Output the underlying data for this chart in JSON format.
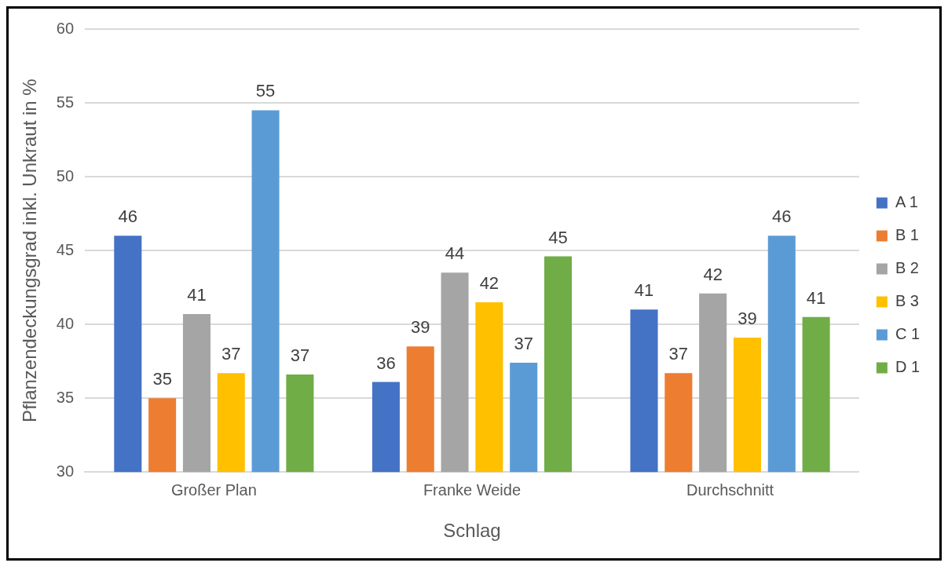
{
  "chart_data": {
    "type": "bar",
    "xlabel": "Schlag",
    "ylabel": "Pflanzendeckungsgrad inkl. Unkraut in %",
    "categories": [
      "Großer Plan",
      "Franke Weide",
      "Durchschnitt"
    ],
    "series": [
      {
        "name": "A 1",
        "color": "#4472c4",
        "values": [
          46.0,
          36.1,
          41.0
        ],
        "value_labels": [
          "46",
          "36",
          "41"
        ]
      },
      {
        "name": "B 1",
        "color": "#ed7d31",
        "values": [
          35.0,
          38.5,
          36.7
        ],
        "value_labels": [
          "35",
          "39",
          "37"
        ]
      },
      {
        "name": "B 2",
        "color": "#a5a5a5",
        "values": [
          40.7,
          43.5,
          42.1
        ],
        "value_labels": [
          "41",
          "44",
          "42"
        ]
      },
      {
        "name": "B 3",
        "color": "#ffc000",
        "values": [
          36.7,
          41.5,
          39.1
        ],
        "value_labels": [
          "37",
          "42",
          "39"
        ]
      },
      {
        "name": "C 1",
        "color": "#5b9bd5",
        "values": [
          54.5,
          37.4,
          46.0
        ],
        "value_labels": [
          "55",
          "37",
          "46"
        ]
      },
      {
        "name": "D 1",
        "color": "#70ad47",
        "values": [
          36.6,
          44.6,
          40.5
        ],
        "value_labels": [
          "37",
          "45",
          "41"
        ]
      }
    ],
    "ylim": [
      30,
      60
    ],
    "yticks": [
      30,
      35,
      40,
      45,
      50,
      55,
      60
    ],
    "grid": "y",
    "legend": "right"
  }
}
